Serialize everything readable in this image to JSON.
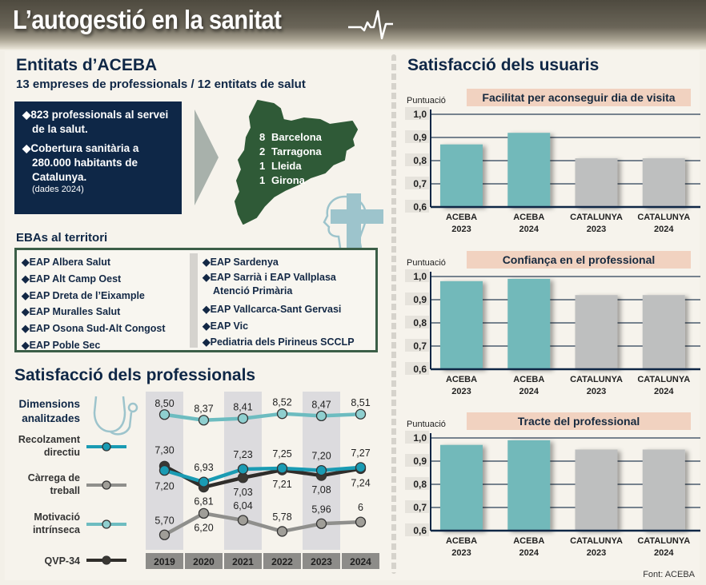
{
  "header": {
    "title": "L’autogestió en la sanitat",
    "icon": "heartbeat-pulse-icon"
  },
  "entitats": {
    "title": "Entitats d’ACEBA",
    "subtitle": "13 empreses de professionals / 12 entitats de salut",
    "facts": [
      "◆823 professionals al servei de la salut.",
      "◆Cobertura sanitària a 280.000 habitants de Catalunya."
    ],
    "note": "(dades 2024)",
    "map_regions": [
      {
        "count": "8",
        "name": "Barcelona"
      },
      {
        "count": "2",
        "name": "Tarragona"
      },
      {
        "count": "1",
        "name": "Lleida"
      },
      {
        "count": "1",
        "name": "Girona"
      }
    ],
    "colors": {
      "navy": "#0e2747",
      "map_green": "#2f5a37",
      "arrow_gray": "#a8b1ab",
      "health_icon": "#9dc4cc"
    }
  },
  "ebas": {
    "title": "EBAs al territori",
    "left": [
      "◆EAP Albera Salut",
      "◆EAP Alt Camp Oest",
      "◆EAP Dreta de l’Eixample",
      "◆EAP Muralles Salut",
      "◆EAP Osona Sud-Alt Congost",
      "◆EAP Poble Sec"
    ],
    "right": [
      "◆EAP Sardenya",
      "◆EAP Sarrià i EAP Vallplasa",
      "Atenció Primària",
      "◆EAP Vallcarca-Sant Gervasi",
      "◆EAP Vic",
      "◆Pediatria dels Pirineus SCCLP"
    ]
  },
  "professionals": {
    "title": "Satisfacció dels professionals",
    "legend_title_1": "Dimensions",
    "legend_title_2": "analitzades",
    "legend": [
      {
        "line1": "Recolzament",
        "line2": "directiu",
        "color": "#1a9bb3",
        "dot": "#1a9bb3"
      },
      {
        "line1": "Càrrega de",
        "line2": "treball",
        "color": "#8f8f8c",
        "dot": "#a09e98"
      },
      {
        "line1": "Motivació",
        "line2": "intrínseca",
        "color": "#6dbcc0",
        "dot": "#8fcfcf"
      },
      {
        "line1": "QVP-34",
        "line2": "",
        "color": "#2f2d2a",
        "dot": "#3a3833"
      }
    ]
  },
  "usuaris": {
    "title": "Satisfacció dels usuaris",
    "axis_label": "Puntuació"
  },
  "source": "Font: ACEBA",
  "chart_data": [
    {
      "type": "line",
      "title": "Satisfacció dels professionals",
      "x": [
        "2019",
        "2020",
        "2021",
        "2022",
        "2023",
        "2024"
      ],
      "series": [
        {
          "name": "Motivació intrínseca",
          "values": [
            8.5,
            8.37,
            8.41,
            8.52,
            8.47,
            8.51
          ],
          "labels": [
            "8,50",
            "8,37",
            "8,41",
            "8,52",
            "8,47",
            "8,51"
          ],
          "color": "#6dbcc0"
        },
        {
          "name": "QVP-34",
          "values": [
            7.3,
            6.81,
            7.03,
            7.21,
            7.08,
            7.24
          ],
          "labels": [
            "7,30",
            "6,81",
            "7,03",
            "7,21",
            "7,08",
            "7,24"
          ],
          "color": "#2f2d2a"
        },
        {
          "name": "Recolzament directiu",
          "values": [
            7.2,
            6.93,
            7.23,
            7.25,
            7.2,
            7.27
          ],
          "labels": [
            "7,20",
            "6,93",
            "7,23",
            "7,25",
            "7,20",
            "7,27"
          ],
          "color": "#1a9bb3"
        },
        {
          "name": "Càrrega de treball",
          "values": [
            5.7,
            6.2,
            6.04,
            5.78,
            5.96,
            6.0
          ],
          "labels": [
            "5,70",
            "6,20",
            "6,04",
            "5,78",
            "5,96",
            "6"
          ],
          "color": "#8f8f8c"
        }
      ],
      "grid": false,
      "alternating_column_shading": true
    },
    {
      "type": "bar",
      "title": "Facilitat per aconseguir dia de visita",
      "ylabel": "Puntuació",
      "categories": [
        "ACEBA 2023",
        "ACEBA 2024",
        "CATALUNYA 2023",
        "CATALUNYA 2024"
      ],
      "category_lines": [
        [
          "ACEBA",
          "2023"
        ],
        [
          "ACEBA",
          "2024"
        ],
        [
          "CATALUNYA",
          "2023"
        ],
        [
          "CATALUNYA",
          "2024"
        ]
      ],
      "values": [
        0.87,
        0.92,
        0.81,
        0.81
      ],
      "colors": [
        "#72b9ba",
        "#72b9ba",
        "#bebfbf",
        "#bebfbf"
      ],
      "ylim": [
        0.6,
        1.0
      ],
      "yticks": [
        "0,6",
        "0,7",
        "0,8",
        "0,9",
        "1,0"
      ],
      "grid": true
    },
    {
      "type": "bar",
      "title": "Confiança en el professional",
      "ylabel": "Puntuació",
      "categories": [
        "ACEBA 2023",
        "ACEBA 2024",
        "CATALUNYA 2023",
        "CATALUNYA 2024"
      ],
      "category_lines": [
        [
          "ACEBA",
          "2023"
        ],
        [
          "ACEBA",
          "2024"
        ],
        [
          "CATALUNYA",
          "2023"
        ],
        [
          "CATALUNYA",
          "2024"
        ]
      ],
      "values": [
        0.98,
        0.99,
        0.92,
        0.92
      ],
      "colors": [
        "#72b9ba",
        "#72b9ba",
        "#bebfbf",
        "#bebfbf"
      ],
      "ylim": [
        0.6,
        1.0
      ],
      "yticks": [
        "0,6",
        "0,7",
        "0,8",
        "0,9",
        "1,0"
      ],
      "grid": true
    },
    {
      "type": "bar",
      "title": "Tracte del professional",
      "ylabel": "Puntuació",
      "categories": [
        "ACEBA 2023",
        "ACEBA 2024",
        "CATALUNYA 2023",
        "CATALUNYA 2024"
      ],
      "category_lines": [
        [
          "ACEBA",
          "2023"
        ],
        [
          "ACEBA",
          "2024"
        ],
        [
          "CATALUNYA",
          "2023"
        ],
        [
          "CATALUNYA",
          "2024"
        ]
      ],
      "values": [
        0.97,
        0.99,
        0.95,
        0.95
      ],
      "colors": [
        "#72b9ba",
        "#72b9ba",
        "#bebfbf",
        "#bebfbf"
      ],
      "ylim": [
        0.6,
        1.0
      ],
      "yticks": [
        "0,6",
        "0,7",
        "0,8",
        "0,9",
        "1,0"
      ],
      "grid": true
    }
  ]
}
